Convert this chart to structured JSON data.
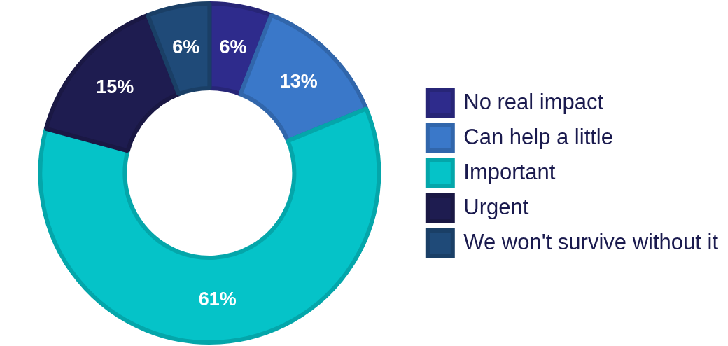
{
  "chart_data": {
    "type": "donut",
    "categories": [
      "No real impact",
      "Can help a little",
      "Important",
      "Urgent",
      "We won't survive without it"
    ],
    "values": [
      6,
      13,
      61,
      15,
      6
    ],
    "value_labels": [
      "6%",
      "13%",
      "61%",
      "15%",
      "6%"
    ],
    "colors": [
      "#2e2b8c",
      "#3a78c9",
      "#05c3c8",
      "#1e1c50",
      "#1f4a78"
    ],
    "legend": "right"
  }
}
